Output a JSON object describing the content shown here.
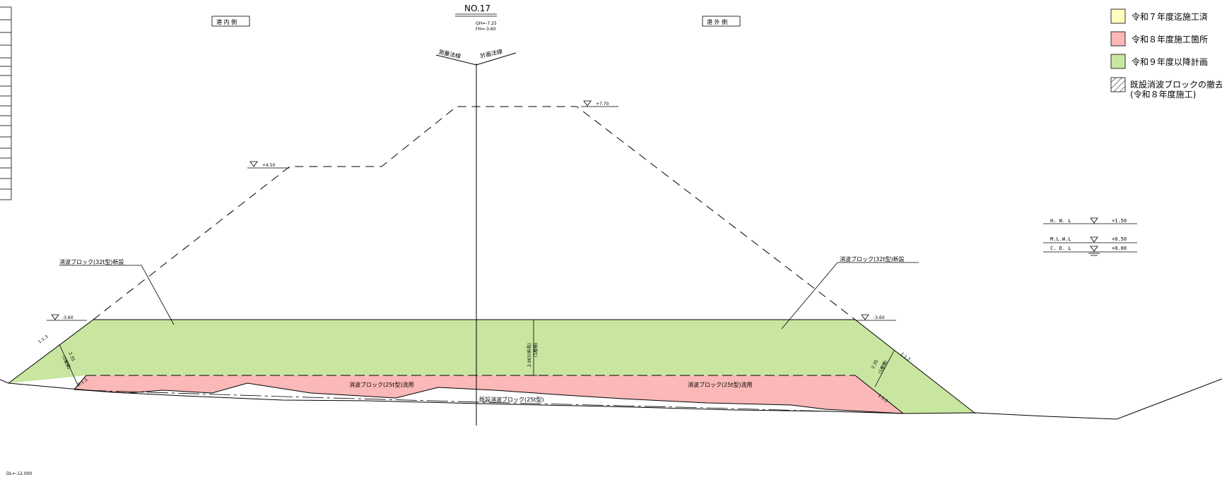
{
  "section": {
    "number": "NO.17",
    "gh": "GH=-7.25",
    "fh": "FH=-3.60",
    "harbor_inner": "港 内 側",
    "harbor_outer": "港 外 側",
    "survey_line": "測量法線",
    "plan_line": "計画法線",
    "datum": "DL=-12.000"
  },
  "levels": {
    "left_upper": "+4.50",
    "top": "+7.70",
    "left_crest": "-3.60",
    "right_crest": "-3.60"
  },
  "tide": {
    "hwl_label": "H. W. L",
    "hwl_value": "+1.50",
    "mlwl_label": "M.L.W.L",
    "mlwl_value": "+0.50",
    "cdl_label": "C. D. L",
    "cdl_value": "+0.00"
  },
  "annotations": {
    "new_left": "消波ブロック(32t型)新設",
    "new_right": "消波ブロック(32t型)新設",
    "reuse_left": "消波ブロック(25t型)流用",
    "reuse_right": "消波ブロック(25t型)流用",
    "existing": "既設消波ブロック(25t型)",
    "thickness_center_1": "2.965(斜長)",
    "thickness_center_2": "(1層積)",
    "thickness_side_1": "2.35",
    "thickness_side_2": "(1層積)",
    "slope_1": "1:1.3",
    "slope_2": "1:1.3",
    "slope_3": "1:1.3",
    "slope_4": "1:1.3"
  },
  "legend": {
    "items": [
      {
        "label": "令和７年度迄施工済",
        "color": "#ffffc0"
      },
      {
        "label": "令和８年度施工箇所",
        "color": "#fbb8b8"
      },
      {
        "label": "令和９年度以降計画",
        "color": "#c8e6a0"
      }
    ],
    "hatch_label_1": "既設消波ブロックの撤去",
    "hatch_label_2": "(令和８年度施工)"
  },
  "colors": {
    "pink": "#fbb8b8",
    "green": "#c8e6a0",
    "yellow": "#ffffc0"
  }
}
